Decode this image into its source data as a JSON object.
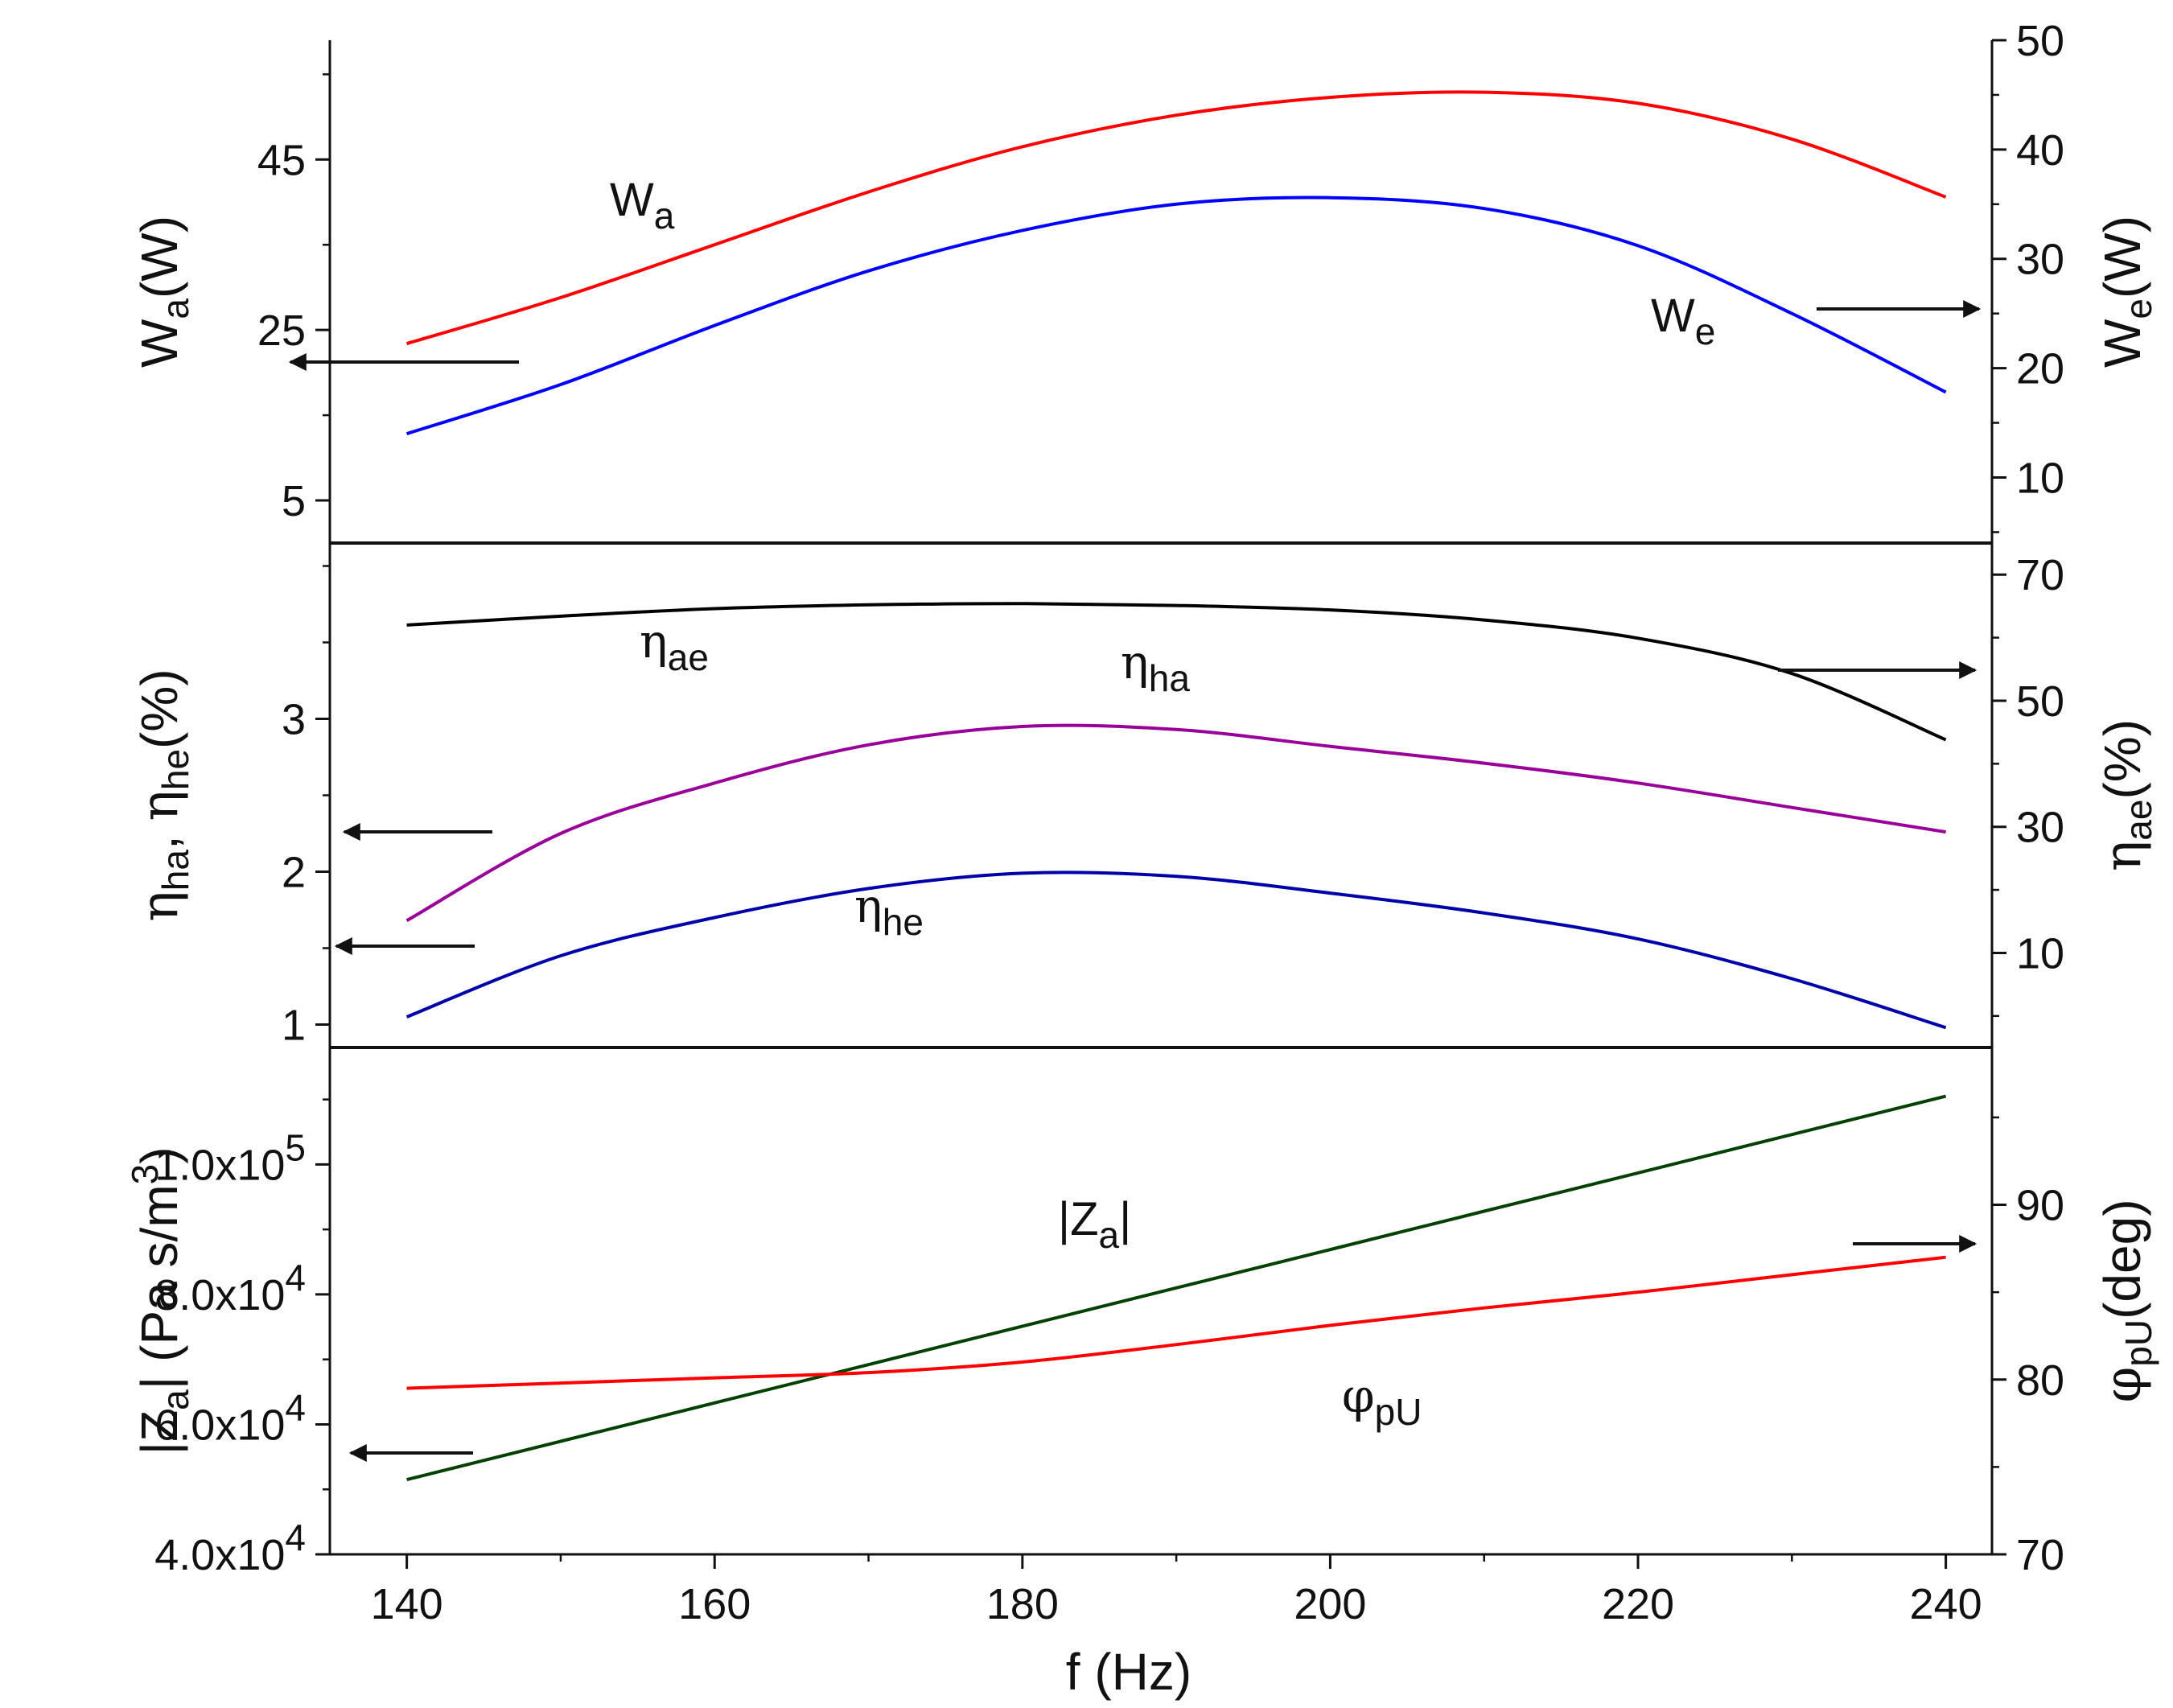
{
  "chart_data": [
    {
      "type": "line",
      "panel": "top",
      "x": [
        140,
        150,
        160,
        170,
        180,
        190,
        200,
        210,
        220,
        230,
        240
      ],
      "xlim": [
        135,
        243
      ],
      "left_axis": {
        "label_main": "W",
        "label_sub": "a",
        "label_unit": "(W)",
        "ylim": [
          0,
          59
        ],
        "ticks": [
          5,
          25,
          45
        ],
        "tick_labels": [
          "5",
          "25",
          "45"
        ]
      },
      "right_axis": {
        "label_main": "W",
        "label_sub": "e",
        "label_unit": "(W)",
        "ylim": [
          4,
          50
        ],
        "ticks": [
          10,
          20,
          30,
          40,
          50
        ],
        "tick_labels": [
          "10",
          "20",
          "30",
          "40",
          "50"
        ]
      },
      "series": [
        {
          "name": "W_a",
          "axis": "left",
          "color": "#ff0000",
          "label_main": "W",
          "label_sub": "a",
          "values": [
            23.4,
            28.8,
            35.0,
            41.2,
            46.5,
            50.2,
            52.3,
            52.9,
            51.6,
            47.4,
            40.6
          ]
        },
        {
          "name": "W_e",
          "axis": "right",
          "color": "#0000ff",
          "label_main": "W",
          "label_sub": "e",
          "values": [
            14.0,
            18.5,
            23.9,
            28.9,
            32.6,
            35.0,
            35.6,
            34.6,
            31.2,
            25.0,
            17.8
          ]
        }
      ],
      "arrows": [
        "left",
        "right"
      ]
    },
    {
      "type": "line",
      "panel": "middle",
      "x": [
        140,
        150,
        160,
        170,
        180,
        190,
        200,
        210,
        220,
        230,
        240
      ],
      "xlim": [
        135,
        243
      ],
      "left_axis": {
        "label_main1": "η",
        "label_sub1": "ha",
        "label_sep": ", ",
        "label_main2": "η",
        "label_sub2": "he",
        "label_unit": "(%)",
        "ylim": [
          0.85,
          4.15
        ],
        "ticks": [
          1,
          2,
          3
        ],
        "tick_labels": [
          "1",
          "2",
          "3"
        ]
      },
      "right_axis": {
        "label_main": "η",
        "label_sub": "ae",
        "label_unit": "(%)",
        "ylim": [
          -5,
          75
        ],
        "ticks": [
          10,
          30,
          50,
          70
        ],
        "tick_labels": [
          "10",
          "30",
          "50",
          "70"
        ]
      },
      "series": [
        {
          "name": "η_ae",
          "axis": "right",
          "color": "#000000",
          "label_main": "η",
          "label_sub": "ae",
          "values": [
            62.0,
            63.4,
            64.6,
            65.2,
            65.4,
            65.1,
            64.4,
            62.8,
            59.9,
            54.3,
            43.8
          ]
        },
        {
          "name": "η_ha",
          "axis": "left",
          "color": "#990099",
          "label_main": "η",
          "label_sub": "ha",
          "values": [
            1.68,
            2.25,
            2.58,
            2.83,
            2.95,
            2.93,
            2.82,
            2.71,
            2.58,
            2.42,
            2.26
          ]
        },
        {
          "name": "η_he",
          "axis": "left",
          "color": "#0000aa",
          "label_main": "η",
          "label_sub": "he",
          "values": [
            1.05,
            1.45,
            1.7,
            1.89,
            1.99,
            1.97,
            1.86,
            1.73,
            1.56,
            1.3,
            0.98
          ]
        }
      ],
      "arrows": [
        "left",
        "left",
        "right"
      ]
    },
    {
      "type": "line",
      "panel": "bottom",
      "x": [
        140,
        150,
        160,
        170,
        180,
        190,
        200,
        210,
        220,
        230,
        240
      ],
      "xlim": [
        135,
        243
      ],
      "xlabel": "f (Hz)",
      "xticks": [
        140,
        160,
        180,
        200,
        220,
        240
      ],
      "xtick_labels": [
        "140",
        "160",
        "180",
        "200",
        "220",
        "240"
      ],
      "left_axis": {
        "label_main": "|Z",
        "label_sub": "a",
        "label_mid": "|  (Pa s/m",
        "label_sup": "3",
        "label_end": ")",
        "ylim": [
          40000,
          118000
        ],
        "ticks": [
          40000,
          60000,
          80000,
          100000
        ],
        "tick_mant": [
          "4.0x10",
          "6.0x10",
          "8.0x10",
          "1.0x10"
        ],
        "tick_exp": [
          "4",
          "4",
          "4",
          "5"
        ]
      },
      "right_axis": {
        "label_main": "φ",
        "label_sub": "pU",
        "label_unit": "(deg)",
        "ylim": [
          70,
          99
        ],
        "ticks": [
          70,
          80,
          90
        ],
        "tick_labels": [
          "70",
          "80",
          "90"
        ]
      },
      "series": [
        {
          "name": "|Z_a|",
          "axis": "left",
          "color": "#004000",
          "label_main": "|Z",
          "label_sub": "a",
          "label_end": "|",
          "values": [
            51500,
            57400,
            63300,
            69200,
            75100,
            81000,
            86900,
            92800,
            98700,
            104600,
            110500
          ]
        },
        {
          "name": "φ_pU",
          "axis": "right",
          "color": "#ff0000",
          "label_main": "φ",
          "label_sub": "pU",
          "values": [
            79.5,
            79.8,
            80.1,
            80.4,
            81.0,
            82.0,
            83.1,
            84.1,
            85.0,
            86.0,
            87.0
          ]
        }
      ],
      "arrows": [
        "left",
        "right"
      ]
    }
  ]
}
